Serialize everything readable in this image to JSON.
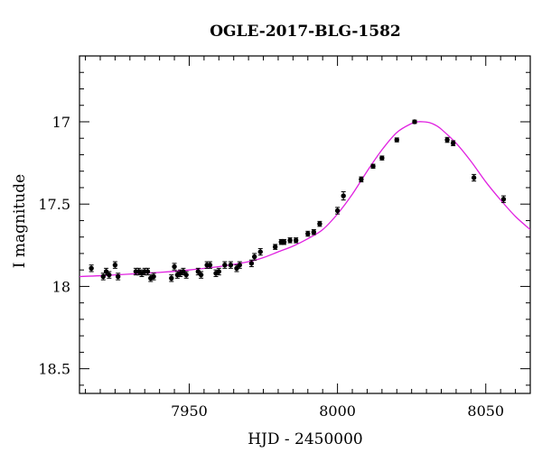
{
  "chart_data": {
    "type": "scatter",
    "title": "OGLE-2017-BLG-1582",
    "xlabel": "HJD - 2450000",
    "ylabel": "I magnitude",
    "xlim": [
      7913,
      8065
    ],
    "ylim": [
      18.65,
      16.6
    ],
    "y_inverted": true,
    "grid": false,
    "x_major_ticks": [
      7950,
      8000,
      8050
    ],
    "x_tick_labels": [
      "7950",
      "8000",
      "8050"
    ],
    "y_major_ticks": [
      17,
      17.5,
      18,
      18.5
    ],
    "y_tick_labels": [
      "17",
      "17.5",
      "18",
      "18.5"
    ],
    "colors": {
      "points": "#000000",
      "model": "#e020e0",
      "axes": "#000000"
    },
    "model": {
      "name": "",
      "color": "#e020e0",
      "x": [
        7913,
        7920,
        7930,
        7940,
        7950,
        7960,
        7970,
        7975,
        7980,
        7985,
        7990,
        7995,
        8000,
        8005,
        8010,
        8015,
        8020,
        8025,
        8027,
        8029,
        8031,
        8033,
        8035,
        8040,
        8045,
        8050,
        8055,
        8060,
        8065
      ],
      "y": [
        17.94,
        17.935,
        17.925,
        17.915,
        17.9,
        17.88,
        17.85,
        17.825,
        17.79,
        17.755,
        17.71,
        17.655,
        17.56,
        17.44,
        17.3,
        17.17,
        17.065,
        17.01,
        17.0,
        17.0,
        17.005,
        17.02,
        17.045,
        17.13,
        17.24,
        17.365,
        17.475,
        17.575,
        17.655
      ]
    },
    "series": [
      {
        "name": "",
        "color": "#000000",
        "x": [
          7917,
          7921,
          7922,
          7923,
          7925,
          7926,
          7932,
          7933,
          7934,
          7935,
          7936,
          7937,
          7938,
          7944,
          7945,
          7946,
          7947,
          7948,
          7949,
          7953,
          7954,
          7956,
          7957,
          7959,
          7960,
          7962,
          7964,
          7966,
          7967,
          7971,
          7972,
          7974,
          7979,
          7981,
          7982,
          7984,
          7986,
          7990,
          7992,
          7994,
          8000,
          8002,
          8008,
          8012,
          8015,
          8020,
          8026,
          8037,
          8039,
          8046,
          8056
        ],
        "y": [
          17.89,
          17.94,
          17.91,
          17.93,
          17.87,
          17.94,
          17.91,
          17.91,
          17.92,
          17.91,
          17.91,
          17.95,
          17.94,
          17.95,
          17.88,
          17.93,
          17.92,
          17.91,
          17.93,
          17.91,
          17.93,
          17.87,
          17.87,
          17.92,
          17.91,
          17.87,
          17.87,
          17.89,
          17.87,
          17.86,
          17.82,
          17.79,
          17.76,
          17.73,
          17.73,
          17.72,
          17.72,
          17.68,
          17.67,
          17.62,
          17.54,
          17.45,
          17.35,
          17.27,
          17.22,
          17.11,
          17.0,
          17.11,
          17.13,
          17.34,
          17.47
        ],
        "err": [
          0.02,
          0.02,
          0.02,
          0.02,
          0.02,
          0.02,
          0.02,
          0.02,
          0.02,
          0.02,
          0.02,
          0.02,
          0.02,
          0.02,
          0.02,
          0.02,
          0.02,
          0.02,
          0.02,
          0.02,
          0.02,
          0.02,
          0.02,
          0.02,
          0.02,
          0.02,
          0.02,
          0.02,
          0.02,
          0.02,
          0.02,
          0.02,
          0.015,
          0.015,
          0.015,
          0.015,
          0.015,
          0.015,
          0.015,
          0.015,
          0.02,
          0.025,
          0.015,
          0.012,
          0.012,
          0.012,
          0.01,
          0.015,
          0.015,
          0.02,
          0.02
        ]
      }
    ]
  }
}
